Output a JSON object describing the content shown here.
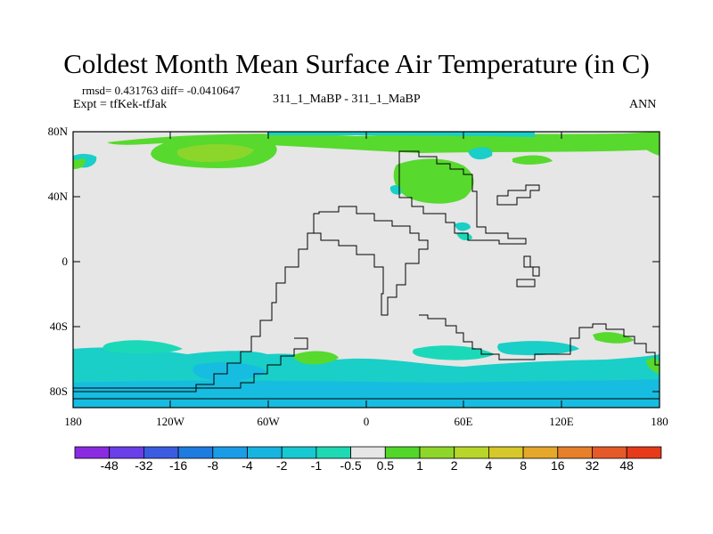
{
  "title": "Coldest Month Mean Surface Air Temperature (in C)",
  "stats": "rmsd= 0.431763 diff= -0.0410647",
  "expt": "Expt = tfKek-tfJak",
  "run_label": "311_1_MaBP - 311_1_MaBP",
  "season": "ANN",
  "y_ticks": [
    "80N",
    "40N",
    "0",
    "40S",
    "80S"
  ],
  "x_ticks": [
    "180",
    "120W",
    "60W",
    "0",
    "60E",
    "120E",
    "180"
  ],
  "colorbar": {
    "labels": [
      "-48",
      "-32",
      "-16",
      "-8",
      "-4",
      "-2",
      "-1",
      "-0.5",
      "0.5",
      "1",
      "2",
      "4",
      "8",
      "16",
      "32",
      "48"
    ],
    "colors": [
      "#8a2be2",
      "#6a3ee8",
      "#3b5ce0",
      "#1e7be0",
      "#1a9ce6",
      "#17b4e0",
      "#16c9d2",
      "#1ed9b4",
      "#e6e6e6",
      "#52d62a",
      "#8fd62a",
      "#b8d62a",
      "#d6c82a",
      "#e6a82a",
      "#e6802a",
      "#e65a2a",
      "#e63a1a"
    ]
  },
  "colors": {
    "background": "#e6e6e6",
    "cool": "#19cfc7",
    "cool_light": "#1bd9b8",
    "cool_dark": "#17bde0",
    "warm": "#57d92e",
    "warm2": "#8cd62c",
    "warm3": "#a9d42c"
  }
}
